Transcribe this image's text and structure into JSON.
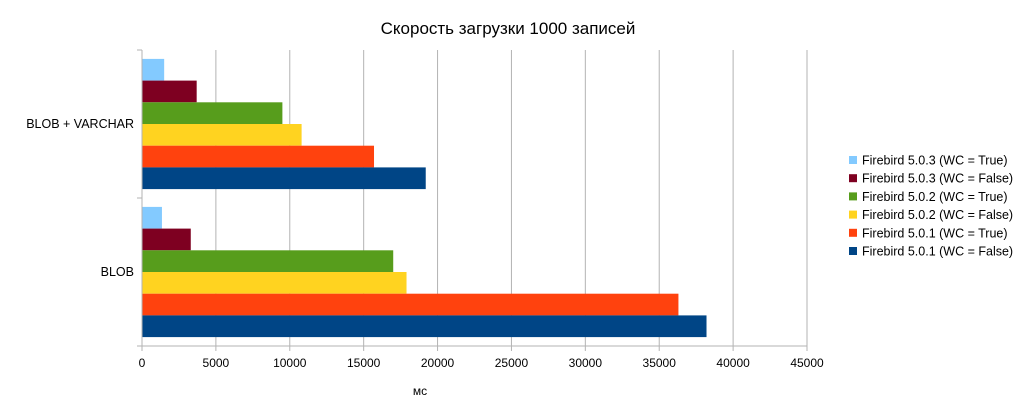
{
  "chart_data": {
    "type": "bar",
    "orientation": "horizontal",
    "title": "Скорость загрузки 1000 записей",
    "xlabel": "мс",
    "ylabel": "",
    "xlim": [
      0,
      45000
    ],
    "xticks": [
      0,
      5000,
      10000,
      15000,
      20000,
      25000,
      30000,
      35000,
      40000,
      45000
    ],
    "grid": true,
    "legend_position": "right",
    "categories": [
      "BLOB + VARCHAR",
      "BLOB"
    ],
    "series": [
      {
        "name": "Firebird 5.0.3 (WC = True)",
        "color": "#83caff",
        "values": [
          1500,
          1350
        ]
      },
      {
        "name": "Firebird 5.0.3 (WC = False)",
        "color": "#7e0021",
        "values": [
          3700,
          3300
        ]
      },
      {
        "name": "Firebird 5.0.2 (WC = True)",
        "color": "#579d1c",
        "values": [
          9500,
          17000
        ]
      },
      {
        "name": "Firebird 5.0.2 (WC = False)",
        "color": "#ffd320",
        "values": [
          10800,
          17900
        ]
      },
      {
        "name": "Firebird 5.0.1 (WC = True)",
        "color": "#ff420e",
        "values": [
          15700,
          36300
        ]
      },
      {
        "name": "Firebird 5.0.1 (WC = False)",
        "color": "#004586",
        "values": [
          19200,
          38200
        ]
      }
    ]
  }
}
